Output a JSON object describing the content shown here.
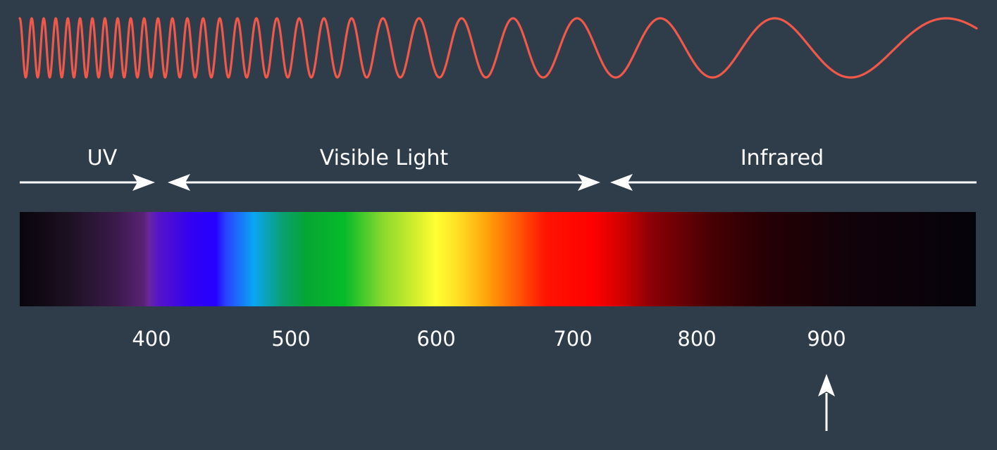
{
  "colors": {
    "background": "#2f3d4b",
    "wave": "#f0584a",
    "arrows": "#ffffff",
    "text": "#ffffff"
  },
  "regions": {
    "uv": {
      "label": "UV"
    },
    "visible": {
      "label": "Visible Light"
    },
    "infrared": {
      "label": "Infrared"
    }
  },
  "spectrum": {
    "ticks": [
      {
        "label": "400"
      },
      {
        "label": "500"
      },
      {
        "label": "600"
      },
      {
        "label": "700"
      },
      {
        "label": "800"
      },
      {
        "label": "900"
      }
    ],
    "marker_wavelength": 900
  }
}
